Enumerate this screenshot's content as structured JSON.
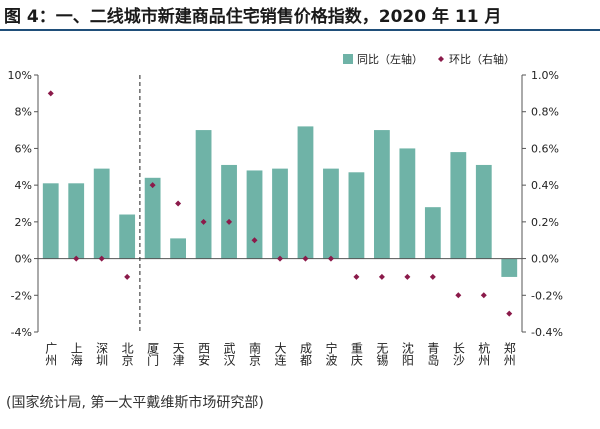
{
  "figure": {
    "title": "图 4：一、二线城市新建商品住宅销售价格指数，2020 年 11 月",
    "source": "(国家统计局, 第一太平戴维斯市场研究部)"
  },
  "chart_data": {
    "type": "bar",
    "categories": [
      "广州",
      "上海",
      "深圳",
      "北京",
      "厦门",
      "天津",
      "西安",
      "武汉",
      "南京",
      "大连",
      "成都",
      "宁波",
      "重庆",
      "无锡",
      "沈阳",
      "青岛",
      "长沙",
      "杭州",
      "郑州"
    ],
    "series": [
      {
        "name": "同比（左轴）",
        "type": "bar",
        "axis": "left",
        "color": "#6fb3a7",
        "values": [
          4.1,
          4.1,
          4.9,
          2.4,
          4.4,
          1.1,
          7.0,
          5.1,
          4.8,
          4.9,
          7.2,
          4.9,
          4.7,
          7.0,
          6.0,
          2.8,
          5.8,
          5.1,
          -1.0
        ]
      },
      {
        "name": "环比（右轴）",
        "type": "scatter",
        "axis": "right",
        "color": "#8b1a4a",
        "values": [
          0.9,
          0.0,
          0.0,
          -0.1,
          0.4,
          0.3,
          0.2,
          0.2,
          0.1,
          0.0,
          0.0,
          0.0,
          -0.1,
          -0.1,
          -0.1,
          -0.1,
          -0.2,
          -0.2,
          -0.3
        ]
      }
    ],
    "yleft": {
      "lim": [
        -4,
        10
      ],
      "ticks": [
        "-4%",
        "-2%",
        "0%",
        "2%",
        "4%",
        "6%",
        "8%",
        "10%"
      ]
    },
    "yright": {
      "lim": [
        -0.4,
        1.0
      ],
      "ticks": [
        "-0.4%",
        "-0.2%",
        "0.0%",
        "0.2%",
        "0.4%",
        "0.6%",
        "0.8%",
        "1.0%"
      ]
    },
    "divider_after_category": "北京",
    "legend_position": "top-right",
    "grid": false
  }
}
